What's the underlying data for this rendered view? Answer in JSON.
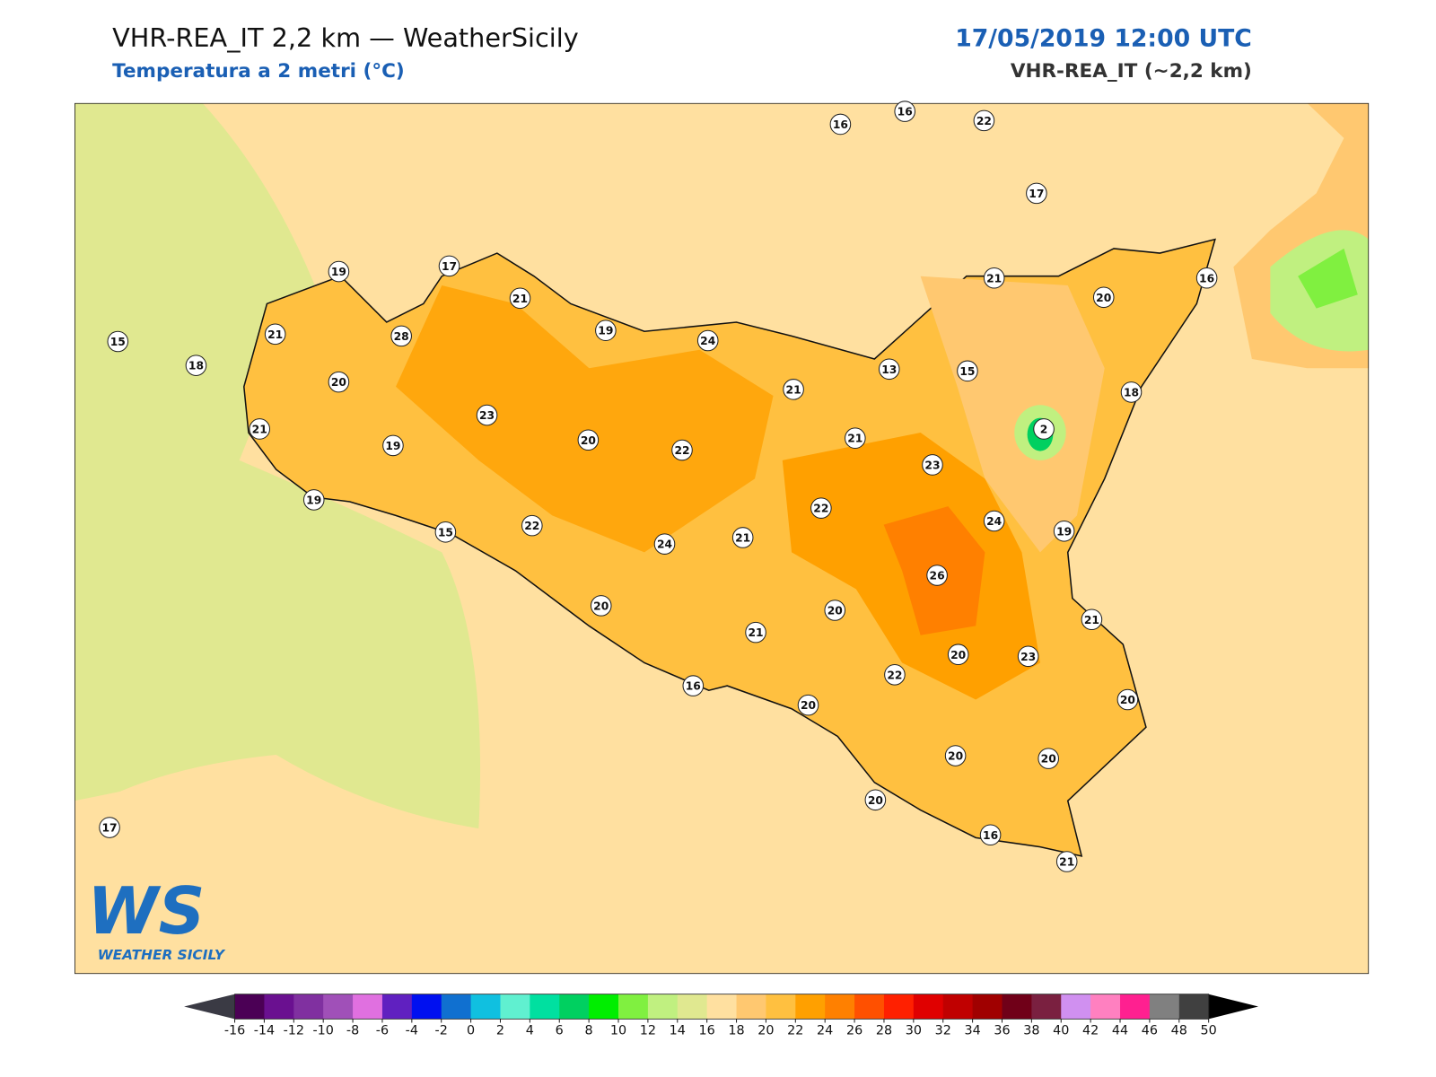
{
  "header": {
    "title": "VHR-REA_IT 2,2 km — WeatherSicily",
    "subtitle": "Temperatura a 2 metri (°C)",
    "date": "17/05/2019 12:00 UTC",
    "model": "VHR-REA_IT (~2,2 km)"
  },
  "map": {
    "stations": [
      16,
      16,
      22,
      17,
      19,
      17,
      21,
      21,
      28,
      19,
      24,
      15,
      18,
      20,
      21,
      20,
      16,
      13,
      15,
      21,
      18,
      21,
      23,
      20,
      19,
      22,
      21,
      2,
      23,
      19,
      22,
      22,
      15,
      24,
      19,
      24,
      21,
      26,
      20,
      20,
      21,
      21,
      20,
      23,
      22,
      16,
      20,
      20,
      20,
      20,
      20,
      17,
      16,
      21
    ]
  },
  "logo": {
    "mark": "WS",
    "text": "WEATHER SICILY"
  },
  "colorbar": {
    "ticks": [
      -16,
      -14,
      -12,
      -10,
      -8,
      -6,
      -4,
      -2,
      0,
      2,
      4,
      6,
      8,
      10,
      12,
      14,
      16,
      18,
      20,
      22,
      24,
      26,
      28,
      30,
      32,
      34,
      36,
      38,
      40,
      42,
      44,
      46,
      48,
      50
    ],
    "colors": [
      "#4b0055",
      "#6a1090",
      "#8030a0",
      "#a050b8",
      "#e070e0",
      "#6020c0",
      "#0010f0",
      "#1070d0",
      "#10c0e0",
      "#60f0d0",
      "#00e0a0",
      "#00d060",
      "#00ee00",
      "#80f040",
      "#c0f080",
      "#e0e890",
      "#ffe0a0",
      "#ffc870",
      "#ffc040",
      "#ffa000",
      "#ff8000",
      "#ff5000",
      "#ff2000",
      "#e00000",
      "#c00000",
      "#a00000",
      "#700018",
      "#7a2040",
      "#d090f0",
      "#ff80c0",
      "#ff2090",
      "#808080",
      "#404040"
    ],
    "under_color": "#3a3a44",
    "over_color": "#000000"
  }
}
